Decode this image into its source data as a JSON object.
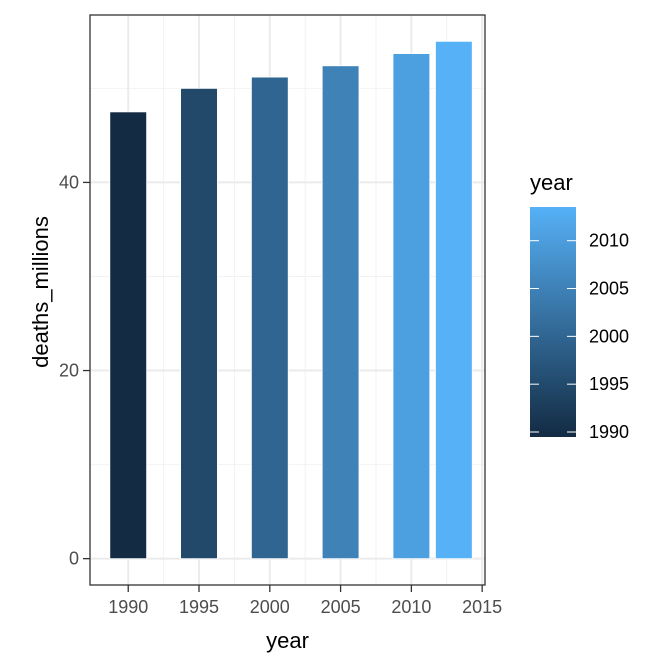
{
  "chart_data": {
    "type": "bar",
    "title": "",
    "xlabel": "year",
    "ylabel": "deaths_millions",
    "x": [
      1990,
      1995,
      2000,
      2005,
      2010,
      2013
    ],
    "values": [
      47.5,
      50.0,
      51.2,
      52.4,
      53.7,
      55.0
    ],
    "xlim": [
      1987.3,
      2015.2
    ],
    "ylim": [
      -2.8,
      57.8
    ],
    "x_ticks": [
      1990,
      1995,
      2000,
      2005,
      2010,
      2015
    ],
    "x_tick_labels": [
      "1990",
      "1995",
      "2000",
      "2005",
      "2010",
      "2015"
    ],
    "y_ticks": [
      0,
      20,
      40
    ],
    "y_tick_labels": [
      "0",
      "20",
      "40"
    ],
    "grid": true,
    "legend": {
      "title": "year",
      "placement": "right",
      "type": "colorbar",
      "range": [
        1990,
        2013
      ],
      "ticks": [
        1990,
        1995,
        2000,
        2005,
        2010
      ],
      "tick_labels": [
        "1990",
        "1995",
        "2000",
        "2005",
        "2010"
      ],
      "low_color": "#132B43",
      "high_color": "#56B1F7"
    }
  }
}
